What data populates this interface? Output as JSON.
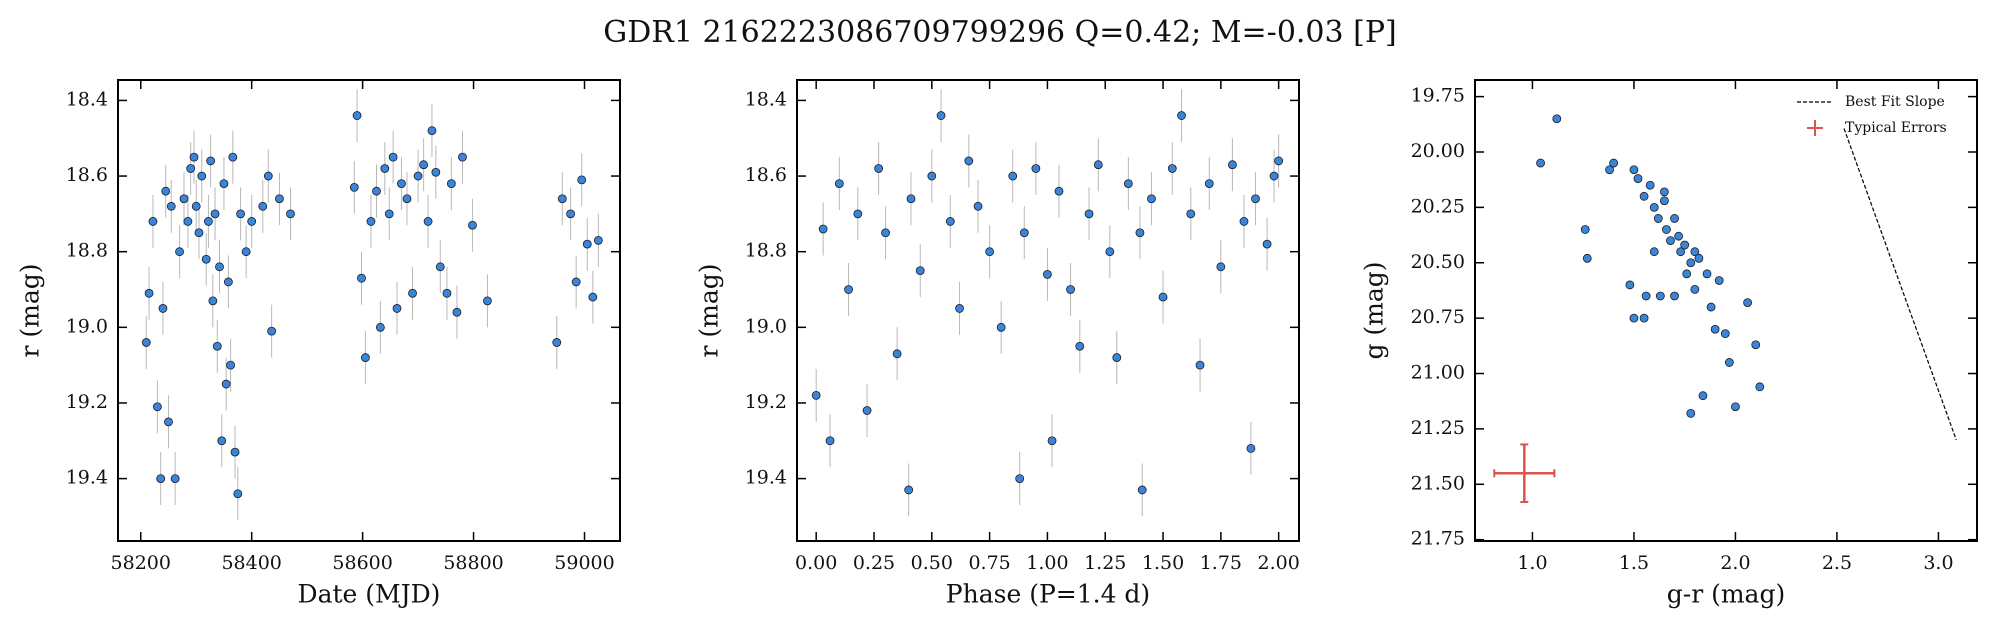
{
  "title": "GDR1 2162223086709799296  Q=0.42; M=-0.03 [P]",
  "chart_data": [
    {
      "type": "scatter",
      "xlabel": "Date (MJD)",
      "ylabel": "r (mag)",
      "color": "#3a86d6",
      "xlim": [
        58159,
        59064
      ],
      "ylim": [
        18.346,
        19.565
      ],
      "invert_y": true,
      "xticks": [
        58200,
        58400,
        58600,
        58800,
        59000
      ],
      "yticks": [
        18.4,
        18.6,
        18.8,
        {
          "value": 19,
          "label": "19.0"
        },
        19.2,
        19.4
      ],
      "yerr": 0.07,
      "x": [
        58210,
        58215,
        58222,
        58230,
        58236,
        58240,
        58245,
        58250,
        58255,
        58262,
        58270,
        58278,
        58285,
        58290,
        58296,
        58300,
        58305,
        58310,
        58318,
        58322,
        58326,
        58330,
        58334,
        58338,
        58342,
        58346,
        58350,
        58354,
        58358,
        58362,
        58366,
        58370,
        58375,
        58380,
        58390,
        58400,
        58420,
        58430,
        58436,
        58450,
        58470,
        58585,
        58590,
        58598,
        58605,
        58615,
        58625,
        58632,
        58640,
        58648,
        58655,
        58662,
        58670,
        58680,
        58690,
        58700,
        58710,
        58718,
        58725,
        58732,
        58740,
        58752,
        58760,
        58770,
        58780,
        58798,
        58825,
        58950,
        58960,
        58975,
        58985,
        58995,
        59005,
        59015,
        59025
      ],
      "y": [
        19.04,
        18.91,
        18.72,
        19.21,
        19.4,
        18.95,
        18.64,
        19.25,
        18.68,
        19.4,
        18.8,
        18.66,
        18.72,
        18.58,
        18.55,
        18.68,
        18.75,
        18.6,
        18.82,
        18.72,
        18.56,
        18.93,
        18.7,
        19.05,
        18.84,
        19.3,
        18.62,
        19.15,
        18.88,
        19.1,
        18.55,
        19.33,
        19.44,
        18.7,
        18.8,
        18.72,
        18.68,
        18.6,
        19.01,
        18.66,
        18.7,
        18.63,
        18.44,
        18.87,
        19.08,
        18.72,
        18.64,
        19.0,
        18.58,
        18.7,
        18.55,
        18.95,
        18.62,
        18.66,
        18.91,
        18.6,
        18.57,
        18.72,
        18.48,
        18.59,
        18.84,
        18.91,
        18.62,
        18.96,
        18.55,
        18.73,
        18.93,
        19.04,
        18.66,
        18.7,
        18.88,
        18.61,
        18.78,
        18.92,
        18.77
      ]
    },
    {
      "type": "scatter",
      "xlabel": "Phase (P=1.4 d)",
      "ylabel": "r (mag)",
      "color": "#3a86d6",
      "xlim": [
        -0.083,
        2.088
      ],
      "ylim": [
        18.346,
        19.565
      ],
      "invert_y": true,
      "xticks": [
        {
          "value": 0,
          "label": "0.00"
        },
        0.25,
        {
          "value": 0.5,
          "label": "0.50"
        },
        0.75,
        {
          "value": 1,
          "label": "1.00"
        },
        1.25,
        {
          "value": 1.5,
          "label": "1.50"
        },
        1.75,
        {
          "value": 2,
          "label": "2.00"
        }
      ],
      "yticks": [
        18.4,
        18.6,
        18.8,
        {
          "value": 19,
          "label": "19.0"
        },
        19.2,
        19.4
      ],
      "yerr": 0.07,
      "x": [
        0.0,
        0.03,
        0.06,
        0.1,
        0.14,
        0.18,
        0.22,
        0.27,
        0.3,
        0.35,
        0.4,
        0.41,
        0.45,
        0.5,
        0.54,
        0.58,
        0.62,
        0.66,
        0.7,
        0.75,
        0.8,
        0.85,
        0.88,
        0.9,
        0.95,
        1.0,
        1.02,
        1.05,
        1.1,
        1.14,
        1.18,
        1.22,
        1.27,
        1.3,
        1.35,
        1.4,
        1.41,
        1.45,
        1.5,
        1.54,
        1.58,
        1.62,
        1.66,
        1.7,
        1.75,
        1.8,
        1.85,
        1.88,
        1.9,
        1.95,
        1.98,
        2.0
      ],
      "y": [
        19.18,
        18.74,
        19.3,
        18.62,
        18.9,
        18.7,
        19.22,
        18.58,
        18.75,
        19.07,
        19.43,
        18.66,
        18.85,
        18.6,
        18.44,
        18.72,
        18.95,
        18.56,
        18.68,
        18.8,
        19.0,
        18.6,
        19.4,
        18.75,
        18.58,
        18.86,
        19.3,
        18.64,
        18.9,
        19.05,
        18.7,
        18.57,
        18.8,
        19.08,
        18.62,
        18.75,
        19.43,
        18.66,
        18.92,
        18.58,
        18.44,
        18.7,
        19.1,
        18.62,
        18.84,
        18.57,
        18.72,
        19.32,
        18.66,
        18.78,
        18.6,
        18.56
      ]
    },
    {
      "type": "scatter",
      "xlabel": "g-r (mag)",
      "ylabel": "g (mag)",
      "color": "#3a86d6",
      "xlim": [
        0.717,
        3.19
      ],
      "ylim": [
        19.675,
        21.756
      ],
      "invert_y": true,
      "xticks": [
        {
          "value": 1,
          "label": "1.0"
        },
        1.5,
        {
          "value": 2,
          "label": "2.0"
        },
        2.5,
        {
          "value": 3,
          "label": "3.0"
        }
      ],
      "yticks": [
        19.75,
        {
          "value": 20,
          "label": "20.00"
        },
        20.25,
        {
          "value": 20.5,
          "label": "20.50"
        },
        20.75,
        {
          "value": 21,
          "label": "21.00"
        },
        21.25,
        {
          "value": 21.5,
          "label": "21.50"
        },
        21.75
      ],
      "x": [
        1.04,
        1.12,
        1.26,
        1.27,
        1.38,
        1.4,
        1.48,
        1.5,
        1.5,
        1.52,
        1.55,
        1.56,
        1.58,
        1.6,
        1.6,
        1.62,
        1.63,
        1.65,
        1.66,
        1.68,
        1.7,
        1.7,
        1.72,
        1.73,
        1.75,
        1.76,
        1.78,
        1.8,
        1.8,
        1.82,
        1.84,
        1.86,
        1.88,
        1.9,
        1.92,
        1.95,
        1.97,
        2.0,
        2.06,
        2.1,
        2.12,
        1.55,
        1.65,
        1.78
      ],
      "y": [
        20.05,
        19.85,
        20.35,
        20.48,
        20.08,
        20.05,
        20.6,
        20.75,
        20.08,
        20.12,
        20.2,
        20.65,
        20.15,
        20.25,
        20.45,
        20.3,
        20.65,
        20.22,
        20.35,
        20.4,
        20.3,
        20.65,
        20.38,
        20.45,
        20.42,
        20.55,
        20.5,
        20.45,
        20.62,
        20.48,
        21.1,
        20.55,
        20.7,
        20.8,
        20.58,
        20.82,
        20.95,
        21.15,
        20.68,
        20.87,
        21.06,
        20.75,
        20.18,
        21.18
      ],
      "legend": "upper right",
      "best_fit": {
        "name": "Best Fit Slope",
        "color": "#000000",
        "x": [
          2.535,
          3.088
        ],
        "y": [
          19.894,
          21.3
        ]
      },
      "typical_errors": {
        "name": "Typical Errors",
        "color": "#d9534f",
        "x": 0.96,
        "y": 21.45,
        "xerr": 0.148,
        "yerr": 0.13
      }
    }
  ]
}
